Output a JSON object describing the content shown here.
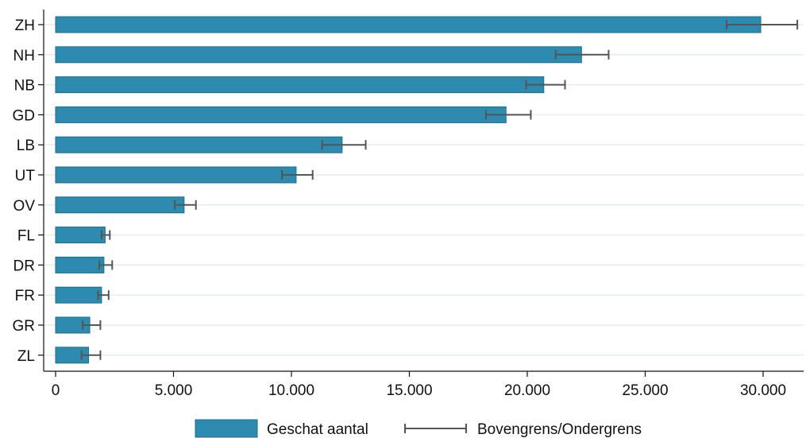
{
  "chart_data": {
    "type": "bar",
    "orientation": "horizontal",
    "categories": [
      "ZH",
      "NH",
      "NB",
      "GD",
      "LB",
      "UT",
      "OV",
      "FL",
      "DR",
      "FR",
      "GR",
      "ZL"
    ],
    "series": [
      {
        "name": "Geschat aantal",
        "values": [
          29900,
          22300,
          20700,
          19100,
          12150,
          10200,
          5450,
          2100,
          2050,
          1950,
          1450,
          1400
        ],
        "color": "#2e8bb0"
      }
    ],
    "error_bars": {
      "name": "Bovengrens/Ondergrens",
      "lower": [
        28450,
        21200,
        19950,
        18250,
        11300,
        9600,
        5050,
        1950,
        1850,
        1800,
        1150,
        1100
      ],
      "upper": [
        31450,
        23450,
        21600,
        20150,
        13150,
        10900,
        5950,
        2300,
        2400,
        2250,
        1900,
        1900
      ],
      "color": "#555555"
    },
    "x_ticks": [
      0,
      5000,
      10000,
      15000,
      20000,
      25000,
      30000
    ],
    "x_tick_labels": [
      "0",
      "5.000",
      "10.000",
      "15.000",
      "20.000",
      "25.000",
      "30.000"
    ],
    "xlim": [
      0,
      31500
    ],
    "grid": true,
    "legend_position": "bottom",
    "title": "",
    "xlabel": "",
    "ylabel": ""
  },
  "legend": {
    "bar_label": "Geschat aantal",
    "errorbar_label": "Bovengrens/Ondergrens"
  }
}
